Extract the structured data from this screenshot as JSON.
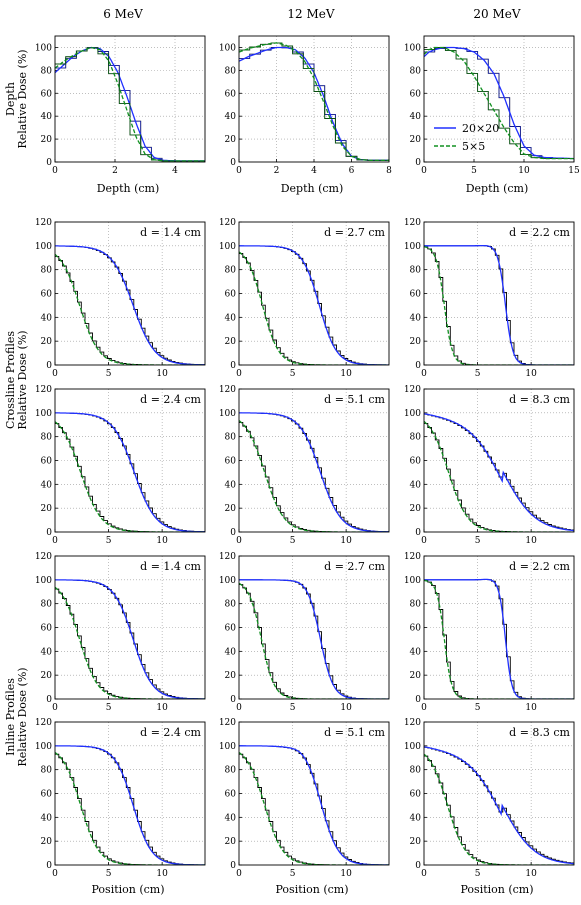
{
  "columns": [
    "6 MeV",
    "12 MeV",
    "20 MeV"
  ],
  "row_labels": {
    "depth": [
      "Depth",
      "Relative Dose (%)"
    ],
    "crossline": [
      "Crossline Profiles",
      "Relative Dose (%)"
    ],
    "inline": [
      "Inline Profiles",
      "Relative Dose (%)"
    ]
  },
  "xlabel_depth": "Depth (cm)",
  "xlabel_position": "Position (cm)",
  "legend": [
    "20×20",
    "5×5"
  ],
  "colors": {
    "field20": "#2030ff",
    "field5": "#109020",
    "measured": "#000000"
  },
  "chart_data": [
    {
      "type": "line",
      "row": 0,
      "col": 0,
      "title": "6 MeV",
      "xlabel": "Depth (cm)",
      "ylabel": "Relative Dose (%)",
      "xlim": [
        0,
        5
      ],
      "ylim": [
        0,
        110
      ],
      "xticks": [
        0,
        2,
        4
      ],
      "yticks": [
        0,
        20,
        40,
        60,
        80,
        100
      ],
      "grid": true,
      "series": [
        {
          "name": "20×20",
          "x": [
            0,
            0.3,
            0.6,
            0.9,
            1.2,
            1.5,
            1.8,
            2.1,
            2.4,
            2.7,
            3.0,
            3.3,
            3.6,
            4.0,
            5.0
          ],
          "y": [
            78,
            85,
            92,
            97,
            100,
            99,
            92,
            78,
            57,
            34,
            14,
            4,
            1.5,
            1,
            1
          ]
        },
        {
          "name": "5×5",
          "x": [
            0,
            0.3,
            0.6,
            0.9,
            1.2,
            1.5,
            1.8,
            2.1,
            2.4,
            2.7,
            3.0,
            3.3,
            3.6,
            4.0,
            5.0
          ],
          "y": [
            82,
            88,
            93,
            97,
            100,
            98,
            88,
            68,
            45,
            22,
            7,
            2,
            1,
            1,
            1
          ]
        }
      ]
    },
    {
      "type": "line",
      "row": 0,
      "col": 1,
      "title": "12 MeV",
      "xlabel": "Depth (cm)",
      "xlim": [
        0,
        8
      ],
      "ylim": [
        0,
        110
      ],
      "xticks": [
        0,
        2,
        4,
        6,
        8
      ],
      "yticks": [
        0,
        20,
        40,
        60,
        80,
        100
      ],
      "grid": true,
      "series": [
        {
          "name": "20×20",
          "x": [
            0,
            0.5,
            1,
            1.5,
            2,
            2.5,
            3,
            3.5,
            4,
            4.5,
            5,
            5.5,
            6,
            6.5,
            7,
            8
          ],
          "y": [
            88,
            92,
            95,
            98,
            100,
            100,
            98,
            91,
            78,
            58,
            35,
            16,
            5,
            2,
            1.5,
            1.5
          ]
        },
        {
          "name": "5×5",
          "x": [
            0,
            0.5,
            1,
            1.5,
            2,
            2.5,
            3,
            3.5,
            4,
            4.5,
            5,
            5.5,
            6,
            6.5,
            7,
            8
          ],
          "y": [
            96,
            99,
            101,
            103,
            104,
            102,
            97,
            88,
            73,
            53,
            32,
            14,
            5,
            2,
            1.5,
            1.5
          ]
        }
      ]
    },
    {
      "type": "line",
      "row": 0,
      "col": 2,
      "title": "20 MeV",
      "xlabel": "Depth (cm)",
      "xlim": [
        0,
        15
      ],
      "ylim": [
        0,
        110
      ],
      "xticks": [
        0,
        5,
        10,
        15
      ],
      "yticks": [
        0,
        20,
        40,
        60,
        80,
        100
      ],
      "grid": true,
      "legend_position": "center-right",
      "series": [
        {
          "name": "20×20",
          "x": [
            0,
            0.5,
            1,
            2,
            3,
            4,
            5,
            6,
            7,
            8,
            9,
            10,
            11,
            12,
            13,
            15
          ],
          "y": [
            92,
            96,
            98,
            100,
            100,
            99,
            96,
            89,
            77,
            57,
            33,
            14,
            6,
            4,
            3.5,
            3
          ]
        },
        {
          "name": "5×5",
          "x": [
            0,
            0.5,
            1,
            2,
            3,
            4,
            5,
            6,
            7,
            8,
            9,
            10,
            11,
            12,
            13,
            15
          ],
          "y": [
            94,
            98,
            100,
            100,
            96,
            88,
            75,
            60,
            45,
            30,
            17,
            7,
            4,
            3,
            3,
            3
          ]
        }
      ]
    },
    {
      "type": "line",
      "row": 1,
      "col": 0,
      "annotation": "d = 1.4 cm",
      "xlim": [
        0,
        14
      ],
      "ylim": [
        0,
        120
      ],
      "xticks": [
        0,
        5,
        10
      ],
      "yticks": [
        0,
        20,
        40,
        60,
        80,
        100,
        120
      ],
      "edges": {
        "field20": 7.3,
        "field5": 2.3
      },
      "widths": {
        "field20": 1.0,
        "field5": 0.9
      },
      "shoulder": 0
    },
    {
      "type": "line",
      "row": 1,
      "col": 1,
      "annotation": "d = 2.7 cm",
      "xlim": [
        0,
        14
      ],
      "ylim": [
        0,
        120
      ],
      "xticks": [
        0,
        5,
        10
      ],
      "yticks": [
        0,
        20,
        40,
        60,
        80,
        100,
        120
      ],
      "edges": {
        "field20": 7.5,
        "field5": 2.2
      },
      "widths": {
        "field20": 0.8,
        "field5": 0.75
      },
      "shoulder": 0
    },
    {
      "type": "line",
      "row": 1,
      "col": 2,
      "annotation": "d = 2.2 cm",
      "xlim": [
        0,
        14
      ],
      "ylim": [
        0,
        120
      ],
      "xticks": [
        0,
        5,
        10
      ],
      "yticks": [
        0,
        20,
        40,
        60,
        80,
        100,
        120
      ],
      "edges": {
        "field20": 7.6,
        "field5": 1.9
      },
      "widths": {
        "field20": 0.35,
        "field5": 0.38
      },
      "shoulder": 1
    },
    {
      "type": "line",
      "row": 2,
      "col": 0,
      "annotation": "d = 2.4 cm",
      "xlim": [
        0,
        14
      ],
      "ylim": [
        0,
        120
      ],
      "xticks": [
        0,
        5,
        10
      ],
      "yticks": [
        0,
        20,
        40,
        60,
        80,
        100,
        120
      ],
      "edges": {
        "field20": 7.4,
        "field5": 2.4
      },
      "widths": {
        "field20": 1.0,
        "field5": 0.95
      },
      "shoulder": 0
    },
    {
      "type": "line",
      "row": 2,
      "col": 1,
      "annotation": "d = 5.1 cm",
      "xlim": [
        0,
        14
      ],
      "ylim": [
        0,
        120
      ],
      "xticks": [
        0,
        5,
        10
      ],
      "yticks": [
        0,
        20,
        40,
        60,
        80,
        100,
        120
      ],
      "edges": {
        "field20": 7.6,
        "field5": 2.4
      },
      "widths": {
        "field20": 0.95,
        "field5": 0.9
      },
      "shoulder": 0
    },
    {
      "type": "line",
      "row": 2,
      "col": 2,
      "annotation": "d = 8.3 cm",
      "xlim": [
        0,
        14
      ],
      "ylim": [
        0,
        120
      ],
      "xticks": [
        0,
        5,
        10
      ],
      "yticks": [
        0,
        20,
        40,
        60,
        80,
        100,
        120
      ],
      "edges": {
        "field20": 7.4,
        "field5": 2.3
      },
      "widths": {
        "field20": 1.5,
        "field5": 0.9
      },
      "shoulder": -3
    },
    {
      "type": "line",
      "row": 3,
      "col": 0,
      "annotation": "d = 1.4 cm",
      "xlim": [
        0,
        14
      ],
      "ylim": [
        0,
        120
      ],
      "xticks": [
        0,
        5,
        10
      ],
      "yticks": [
        0,
        20,
        40,
        60,
        80,
        100,
        120
      ],
      "edges": {
        "field20": 7.3,
        "field5": 2.3
      },
      "widths": {
        "field20": 0.9,
        "field5": 0.85
      },
      "shoulder": 0
    },
    {
      "type": "line",
      "row": 3,
      "col": 1,
      "annotation": "d = 2.7 cm",
      "xlim": [
        0,
        14
      ],
      "ylim": [
        0,
        120
      ],
      "xticks": [
        0,
        5,
        10
      ],
      "yticks": [
        0,
        20,
        40,
        60,
        80,
        100,
        120
      ],
      "edges": {
        "field20": 7.6,
        "field5": 2.1
      },
      "widths": {
        "field20": 0.6,
        "field5": 0.6
      },
      "shoulder": 1
    },
    {
      "type": "line",
      "row": 3,
      "col": 2,
      "annotation": "d = 2.2 cm",
      "xlim": [
        0,
        14
      ],
      "ylim": [
        0,
        120
      ],
      "xticks": [
        0,
        5,
        10
      ],
      "yticks": [
        0,
        20,
        40,
        60,
        80,
        100,
        120
      ],
      "edges": {
        "field20": 7.6,
        "field5": 1.9
      },
      "widths": {
        "field20": 0.3,
        "field5": 0.35
      },
      "shoulder": 1
    },
    {
      "type": "line",
      "row": 4,
      "col": 0,
      "annotation": "d = 2.4 cm",
      "xlim": [
        0,
        14
      ],
      "ylim": [
        0,
        120
      ],
      "xticks": [
        0,
        5,
        10
      ],
      "yticks": [
        0,
        20,
        40,
        60,
        80,
        100,
        120
      ],
      "edges": {
        "field20": 7.3,
        "field5": 2.4
      },
      "widths": {
        "field20": 0.85,
        "field5": 0.85
      },
      "shoulder": 0
    },
    {
      "type": "line",
      "row": 4,
      "col": 1,
      "annotation": "d = 5.1 cm",
      "xlim": [
        0,
        14
      ],
      "ylim": [
        0,
        120
      ],
      "xticks": [
        0,
        5,
        10
      ],
      "yticks": [
        0,
        20,
        40,
        60,
        80,
        100,
        120
      ],
      "edges": {
        "field20": 7.7,
        "field5": 2.4
      },
      "widths": {
        "field20": 0.8,
        "field5": 0.85
      },
      "shoulder": 2
    },
    {
      "type": "line",
      "row": 4,
      "col": 2,
      "annotation": "d = 8.3 cm",
      "xlim": [
        0,
        14
      ],
      "ylim": [
        0,
        120
      ],
      "xticks": [
        0,
        5,
        10
      ],
      "yticks": [
        0,
        20,
        40,
        60,
        80,
        100,
        120
      ],
      "edges": {
        "field20": 7.3,
        "field5": 2.2
      },
      "widths": {
        "field20": 1.5,
        "field5": 0.85
      },
      "shoulder": -3
    }
  ]
}
